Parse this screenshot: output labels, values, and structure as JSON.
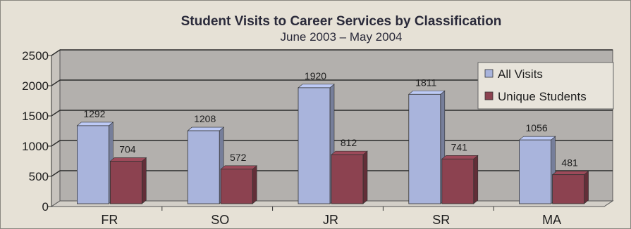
{
  "chart_data": {
    "type": "bar",
    "title": "Student Visits to Career Services by Classification",
    "subtitle": "June 2003 – May 2004",
    "xlabel": "",
    "ylabel": "",
    "ylim": [
      0,
      2500
    ],
    "yticks": [
      0,
      500,
      1000,
      1500,
      2000,
      2500
    ],
    "grid": true,
    "legend_position": "top-right",
    "categories": [
      "FR",
      "SO",
      "JR",
      "SR",
      "MA"
    ],
    "series": [
      {
        "name": "All Visits",
        "values": [
          1292,
          1208,
          1920,
          1811,
          1056
        ],
        "color": "#a9b4dc"
      },
      {
        "name": "Unique Students",
        "values": [
          704,
          572,
          812,
          741,
          481
        ],
        "color": "#8c4250"
      }
    ]
  }
}
